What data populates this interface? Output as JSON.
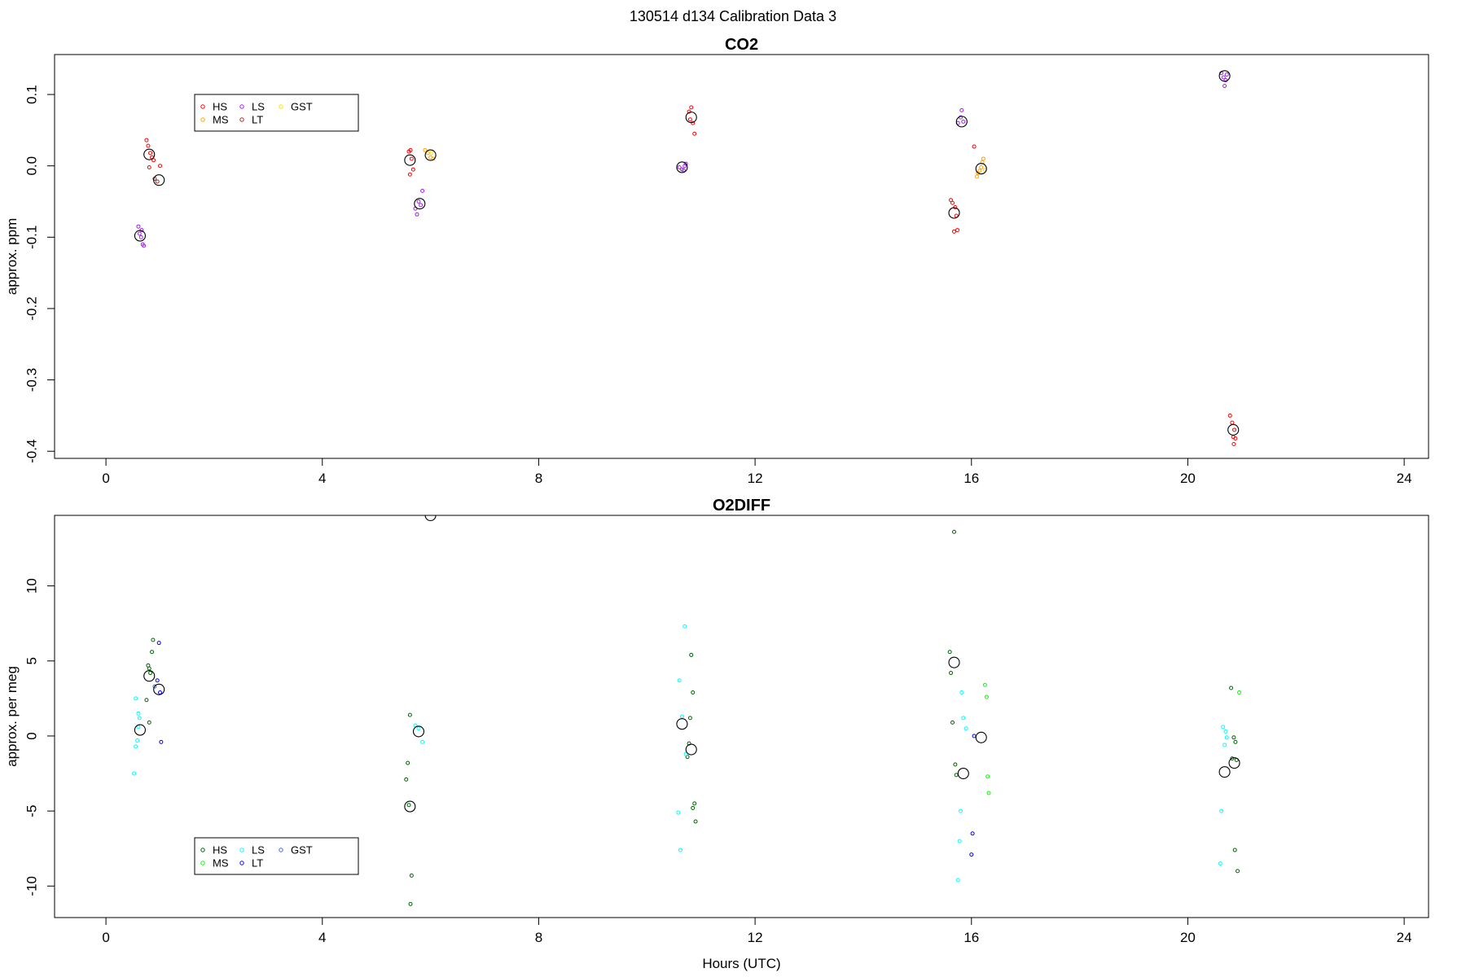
{
  "figure": {
    "supertitle": "130514   d134   Calibration Data 3"
  },
  "chart_data": [
    {
      "type": "scatter",
      "title": "CO2",
      "xlabel": "",
      "ylabel": "approx. ppm",
      "xlim": [
        -0.95,
        24.45
      ],
      "ylim": [
        -0.41,
        0.156
      ],
      "xticks": [
        "0",
        "4",
        "8",
        "12",
        "16",
        "20",
        "24"
      ],
      "xtick_values": [
        0,
        4,
        8,
        12,
        16,
        20,
        24
      ],
      "yticks": [
        "-0.4",
        "-0.3",
        "-0.2",
        "-0.1",
        "0.0",
        "0.1"
      ],
      "ytick_values": [
        -0.4,
        -0.3,
        -0.2,
        -0.1,
        0.0,
        0.1
      ],
      "legend": {
        "position": "top-left",
        "columns": 3,
        "entries": [
          "HS",
          "MS",
          "LS",
          "LT",
          "GST"
        ]
      },
      "series": [
        {
          "name": "HS",
          "color": "#ff0000",
          "points": [
            [
              0.75,
              0.036
            ],
            [
              0.78,
              0.028
            ],
            [
              0.82,
              0.018
            ],
            [
              0.85,
              0.012
            ],
            [
              0.88,
              0.008
            ],
            [
              0.8,
              -0.002
            ],
            [
              1.0,
              0.0
            ],
            [
              5.6,
              0.02
            ],
            [
              5.63,
              0.022
            ],
            [
              5.65,
              0.01
            ],
            [
              5.68,
              -0.005
            ],
            [
              5.62,
              -0.012
            ],
            [
              10.78,
              0.076
            ],
            [
              10.82,
              0.082
            ],
            [
              10.85,
              0.06
            ],
            [
              10.88,
              0.045
            ],
            [
              10.8,
              0.065
            ],
            [
              15.62,
              -0.048
            ],
            [
              15.65,
              -0.052
            ],
            [
              15.7,
              -0.058
            ],
            [
              15.72,
              -0.07
            ],
            [
              15.68,
              -0.092
            ],
            [
              15.74,
              -0.09
            ],
            [
              16.05,
              0.027
            ],
            [
              20.78,
              -0.35
            ],
            [
              20.82,
              -0.36
            ],
            [
              20.86,
              -0.37
            ],
            [
              20.84,
              -0.38
            ],
            [
              20.88,
              -0.382
            ],
            [
              20.85,
              -0.39
            ]
          ]
        },
        {
          "name": "MS",
          "color": "#ffa500",
          "points": [
            [
              5.9,
              0.022
            ],
            [
              5.95,
              0.018
            ],
            [
              6.0,
              0.012
            ],
            [
              6.05,
              0.01
            ],
            [
              16.12,
              -0.01
            ],
            [
              16.18,
              -0.002
            ],
            [
              16.2,
              0.005
            ],
            [
              16.22,
              0.01
            ],
            [
              16.1,
              -0.015
            ],
            [
              16.15,
              -0.007
            ]
          ]
        },
        {
          "name": "LS",
          "color": "#a020f0",
          "points": [
            [
              0.6,
              -0.085
            ],
            [
              0.62,
              -0.095
            ],
            [
              0.65,
              -0.1
            ],
            [
              0.68,
              -0.11
            ],
            [
              0.7,
              -0.112
            ],
            [
              0.66,
              -0.09
            ],
            [
              5.72,
              -0.06
            ],
            [
              5.75,
              -0.068
            ],
            [
              5.78,
              -0.05
            ],
            [
              5.82,
              -0.055
            ],
            [
              5.85,
              -0.035
            ],
            [
              10.6,
              -0.002
            ],
            [
              10.65,
              -0.005
            ],
            [
              10.7,
              0.0
            ],
            [
              10.72,
              0.003
            ],
            [
              10.68,
              -0.006
            ],
            [
              15.75,
              0.06
            ],
            [
              15.8,
              0.068
            ],
            [
              15.82,
              0.078
            ],
            [
              15.85,
              0.062
            ],
            [
              20.62,
              0.13
            ],
            [
              20.66,
              0.124
            ],
            [
              20.7,
              0.12
            ],
            [
              20.68,
              0.112
            ],
            [
              20.72,
              0.128
            ]
          ]
        },
        {
          "name": "LT",
          "color": "#a52a2a",
          "points": [
            [
              0.9,
              -0.018
            ],
            [
              0.95,
              -0.022
            ]
          ]
        },
        {
          "name": "GST",
          "color": "#ffe000",
          "points": [
            [
              6.02,
              0.018
            ],
            [
              16.25,
              -0.006
            ]
          ]
        },
        {
          "name": "",
          "color": "#000000",
          "marker": "large-circle",
          "points": [
            [
              0.63,
              -0.098
            ],
            [
              0.8,
              0.016
            ],
            [
              0.98,
              -0.02
            ],
            [
              5.62,
              0.008
            ],
            [
              5.8,
              -0.053
            ],
            [
              6.0,
              0.015
            ],
            [
              10.65,
              -0.002
            ],
            [
              10.82,
              0.068
            ],
            [
              15.68,
              -0.066
            ],
            [
              15.82,
              0.062
            ],
            [
              16.18,
              -0.004
            ],
            [
              20.68,
              0.126
            ],
            [
              20.84,
              -0.37
            ]
          ]
        }
      ]
    },
    {
      "type": "scatter",
      "title": "O2DIFF",
      "xlabel": "Hours (UTC)",
      "ylabel": "approx. per meg",
      "xlim": [
        -0.95,
        24.45
      ],
      "ylim": [
        -12.1,
        14.7
      ],
      "xticks": [
        "0",
        "4",
        "8",
        "12",
        "16",
        "20",
        "24"
      ],
      "xtick_values": [
        0,
        4,
        8,
        12,
        16,
        20,
        24
      ],
      "yticks": [
        "-10",
        "-5",
        "0",
        "5",
        "10"
      ],
      "ytick_values": [
        -10,
        -5,
        0,
        5,
        10
      ],
      "legend": {
        "position": "bottom-left",
        "columns": 3,
        "entries": [
          "HS",
          "MS",
          "LS",
          "LT",
          "GST"
        ]
      },
      "series": [
        {
          "name": "HS",
          "color": "#006400",
          "points": [
            [
              0.8,
              4.5
            ],
            [
              0.82,
              4.2
            ],
            [
              0.78,
              4.7
            ],
            [
              0.85,
              5.6
            ],
            [
              0.87,
              6.4
            ],
            [
              0.75,
              2.4
            ],
            [
              0.8,
              0.9
            ],
            [
              5.62,
              1.4
            ],
            [
              5.58,
              -1.8
            ],
            [
              5.55,
              -2.9
            ],
            [
              5.6,
              -4.6
            ],
            [
              5.65,
              -9.3
            ],
            [
              5.63,
              -11.2
            ],
            [
              10.82,
              5.4
            ],
            [
              10.85,
              2.9
            ],
            [
              10.8,
              1.2
            ],
            [
              10.78,
              -0.5
            ],
            [
              10.75,
              -1.4
            ],
            [
              10.88,
              -4.5
            ],
            [
              10.85,
              -4.8
            ],
            [
              10.9,
              -5.7
            ],
            [
              15.6,
              5.6
            ],
            [
              15.62,
              4.2
            ],
            [
              15.65,
              0.9
            ],
            [
              15.7,
              -1.9
            ],
            [
              15.72,
              -2.6
            ],
            [
              15.68,
              13.6
            ],
            [
              20.8,
              3.2
            ],
            [
              20.85,
              -0.1
            ],
            [
              20.88,
              -0.4
            ],
            [
              20.82,
              -1.5
            ],
            [
              20.9,
              -1.6
            ],
            [
              20.87,
              -7.6
            ],
            [
              20.92,
              -9.0
            ]
          ]
        },
        {
          "name": "MS",
          "color": "#00ff00",
          "points": [
            [
              16.25,
              3.4
            ],
            [
              16.28,
              2.6
            ],
            [
              16.3,
              -2.7
            ],
            [
              16.32,
              -3.8
            ],
            [
              20.95,
              2.9
            ]
          ]
        },
        {
          "name": "LS",
          "color": "#00ffff",
          "points": [
            [
              0.55,
              2.5
            ],
            [
              0.6,
              1.5
            ],
            [
              0.62,
              1.2
            ],
            [
              0.58,
              -0.3
            ],
            [
              0.55,
              -0.7
            ],
            [
              0.52,
              -2.5
            ],
            [
              0.6,
              0.6
            ],
            [
              5.72,
              0.7
            ],
            [
              5.78,
              0.5
            ],
            [
              5.85,
              -0.4
            ],
            [
              10.6,
              3.7
            ],
            [
              10.65,
              1.3
            ],
            [
              10.7,
              7.3
            ],
            [
              10.72,
              -1.2
            ],
            [
              10.58,
              -5.1
            ],
            [
              10.62,
              -7.6
            ],
            [
              15.82,
              2.9
            ],
            [
              15.85,
              1.2
            ],
            [
              15.9,
              0.5
            ],
            [
              15.8,
              -5.0
            ],
            [
              15.78,
              -7.0
            ],
            [
              15.75,
              -9.6
            ],
            [
              20.65,
              0.6
            ],
            [
              20.7,
              0.3
            ],
            [
              20.72,
              -0.1
            ],
            [
              20.68,
              -0.6
            ],
            [
              20.62,
              -5.0
            ],
            [
              20.6,
              -8.5
            ]
          ]
        },
        {
          "name": "LT",
          "color": "#0000ff",
          "points": [
            [
              0.98,
              6.2
            ],
            [
              0.95,
              3.7
            ],
            [
              1.0,
              2.9
            ],
            [
              1.02,
              -0.4
            ],
            [
              16.02,
              -6.5
            ],
            [
              16.0,
              -7.9
            ],
            [
              16.05,
              0.0
            ]
          ]
        },
        {
          "name": "GST",
          "color": "#4169e1",
          "points": [
            [
              0.9,
              3.3
            ]
          ]
        },
        {
          "name": "",
          "color": "#000000",
          "marker": "large-circle",
          "points": [
            [
              0.63,
              0.4
            ],
            [
              0.8,
              4.0
            ],
            [
              0.98,
              3.1
            ],
            [
              5.62,
              -4.7
            ],
            [
              5.78,
              0.3
            ],
            [
              6.0,
              14.7
            ],
            [
              10.65,
              0.8
            ],
            [
              10.82,
              -0.9
            ],
            [
              15.68,
              4.9
            ],
            [
              15.85,
              -2.5
            ],
            [
              16.18,
              -0.1
            ],
            [
              20.68,
              -2.4
            ],
            [
              20.86,
              -1.8
            ]
          ]
        }
      ]
    }
  ]
}
